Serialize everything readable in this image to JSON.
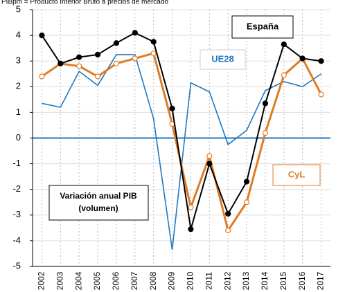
{
  "chart_data": {
    "type": "line",
    "title": "PIBpm = Producto Interior Bruto a precios de mercado",
    "categories": [
      "2002",
      "2003",
      "2004",
      "2005",
      "2006",
      "2007",
      "2008",
      "2009",
      "2010",
      "2011",
      "2012",
      "2013",
      "2014",
      "2015",
      "2016",
      "2017"
    ],
    "series": [
      {
        "name": "UE28",
        "color": "#1f77c0",
        "values": [
          1.35,
          1.2,
          2.6,
          2.05,
          3.25,
          3.25,
          0.75,
          -4.35,
          2.15,
          1.8,
          -0.25,
          0.3,
          1.85,
          2.2,
          2.0,
          2.5
        ]
      },
      {
        "name": "CyL",
        "color": "#e07b24",
        "values": [
          2.4,
          2.9,
          2.8,
          2.4,
          2.9,
          3.1,
          3.3,
          0.55,
          -2.7,
          -0.7,
          -3.6,
          -2.5,
          0.2,
          2.45,
          3.1,
          1.7
        ]
      },
      {
        "name": "España",
        "color": "#000000",
        "values": [
          4.0,
          2.9,
          3.15,
          3.25,
          3.7,
          4.1,
          3.75,
          1.15,
          -3.55,
          -1.0,
          -2.95,
          -1.7,
          1.35,
          3.65,
          3.1,
          3.0
        ]
      }
    ],
    "annotation": "Variación anual PIB (volumen)",
    "ylim": [
      -5,
      5
    ],
    "yticks": [
      -5,
      -4,
      -3,
      -2,
      -1,
      0,
      1,
      2,
      3,
      4,
      5
    ],
    "grid": true
  }
}
